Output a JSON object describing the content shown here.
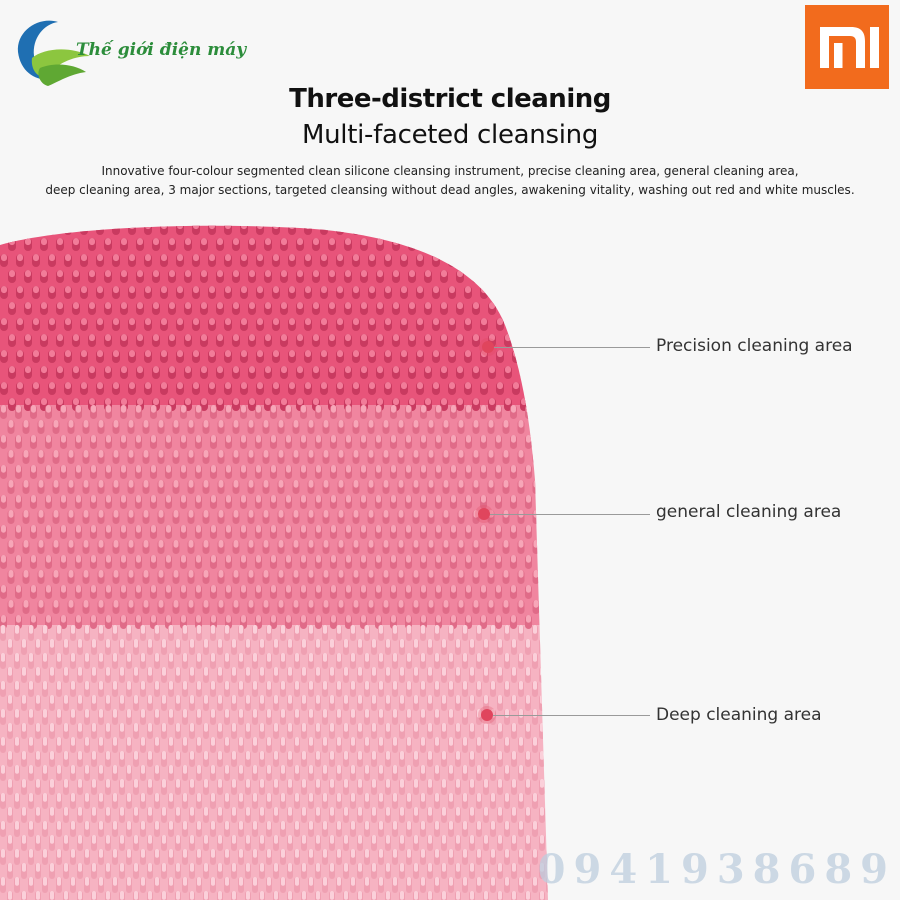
{
  "store": {
    "name": "Thế giới điện máy",
    "logo_icon": "leaf-swirl-icon"
  },
  "brand": {
    "logo": "mi-logo-icon",
    "color": "#f26b1d"
  },
  "heading": {
    "title": "Three-district cleaning",
    "subtitle": "Multi-faceted cleansing",
    "description_line1": "Innovative four-colour segmented clean silicone cleansing instrument, precise cleaning area, general cleaning area,",
    "description_line2": "deep cleaning area, 3 major sections, targeted cleansing without dead angles, awakening vitality, washing out red and white muscles."
  },
  "callouts": [
    {
      "label": "Precision cleaning area"
    },
    {
      "label": "general cleaning area"
    },
    {
      "label": "Deep cleaning area"
    }
  ],
  "zone_colors": [
    "#e8547a",
    "#f0859f",
    "#f6b3c2"
  ],
  "watermark": {
    "phone": "0941938689"
  }
}
